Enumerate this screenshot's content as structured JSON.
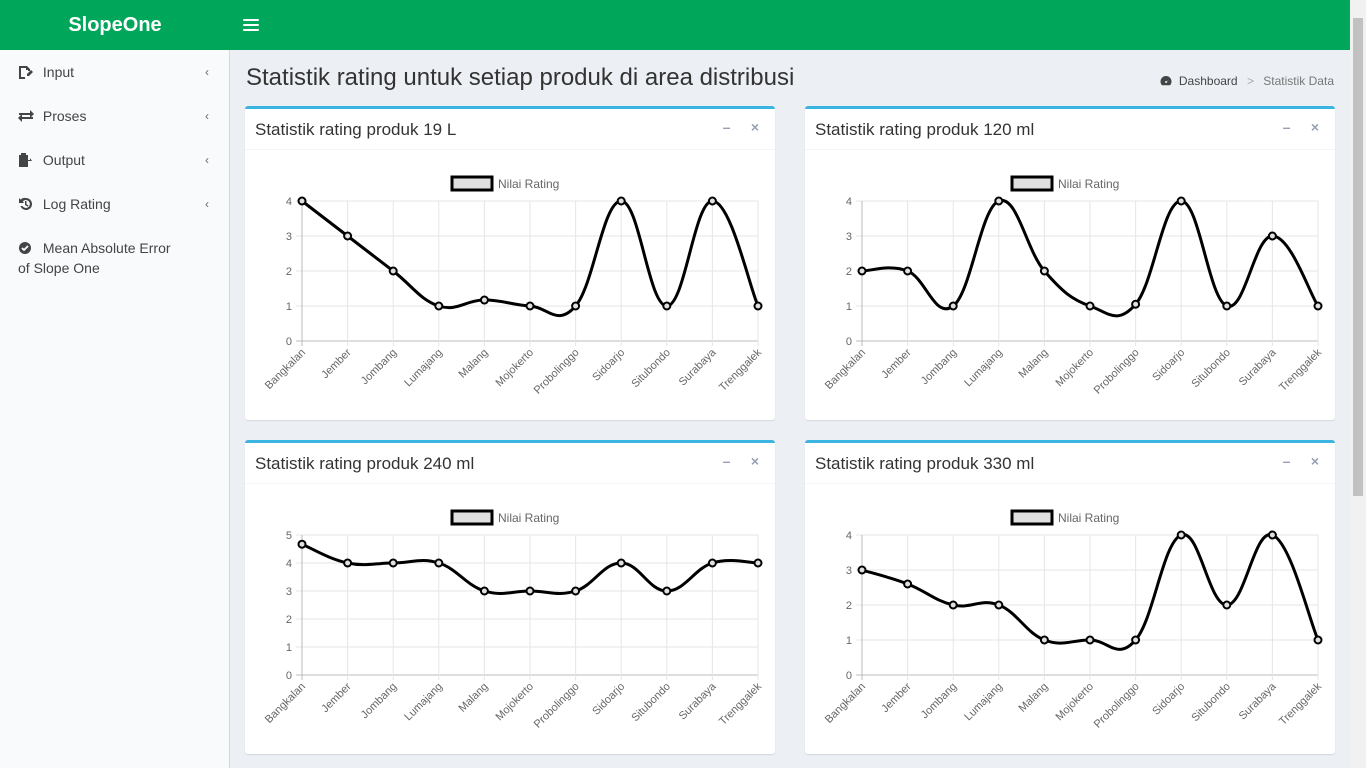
{
  "app": {
    "title": "SlopeOne"
  },
  "sidebar": {
    "items": [
      {
        "label": "Input",
        "icon": "input-icon"
      },
      {
        "label": "Proses",
        "icon": "exchange-icon"
      },
      {
        "label": "Output",
        "icon": "output-icon"
      },
      {
        "label": "Log Rating",
        "icon": "history-icon"
      },
      {
        "label_line1": "Mean Absolute Error",
        "label_line2": "of Slope One",
        "icon": "check-circle-icon"
      }
    ]
  },
  "page": {
    "title": "Statistik rating untuk setiap produk di area distribusi",
    "breadcrumb": {
      "home": "Dashboard",
      "current": "Statistik Data"
    }
  },
  "colors": {
    "header": "#00a65a",
    "box_border": "#3cb4e0",
    "line": "#000000"
  },
  "chart_data": [
    {
      "type": "line",
      "title": "Statistik rating produk 19 L",
      "legend": "Nilai Rating",
      "categories": [
        "Bangkalan",
        "Jember",
        "Jombang",
        "Lumajang",
        "Malang",
        "Mojokerto",
        "Probolinggo",
        "Sidoarjo",
        "Situbondo",
        "Surabaya",
        "Trenggalek"
      ],
      "values": [
        4,
        3,
        2,
        1,
        1.17,
        1,
        1,
        4,
        1,
        4,
        1
      ],
      "ylim": [
        0,
        4
      ],
      "yticks": [
        0,
        1,
        2,
        3,
        4
      ]
    },
    {
      "type": "line",
      "title": "Statistik rating produk 120 ml",
      "legend": "Nilai Rating",
      "categories": [
        "Bangkalan",
        "Jember",
        "Jombang",
        "Lumajang",
        "Malang",
        "Mojokerto",
        "Probolinggo",
        "Sidoarjo",
        "Situbondo",
        "Surabaya",
        "Trenggalek"
      ],
      "values": [
        2,
        2,
        1,
        4,
        2,
        1,
        1.05,
        4,
        1,
        3,
        1
      ],
      "ylim": [
        0,
        4
      ],
      "yticks": [
        0,
        1,
        2,
        3,
        4
      ]
    },
    {
      "type": "line",
      "title": "Statistik rating produk 240 ml",
      "legend": "Nilai Rating",
      "categories": [
        "Bangkalan",
        "Jember",
        "Jombang",
        "Lumajang",
        "Malang",
        "Mojokerto",
        "Probolinggo",
        "Sidoarjo",
        "Situbondo",
        "Surabaya",
        "Trenggalek"
      ],
      "values": [
        4.67,
        4,
        4,
        4,
        3,
        3,
        3,
        4,
        3,
        4,
        4
      ],
      "ylim": [
        0,
        5
      ],
      "yticks": [
        0,
        1,
        2,
        3,
        4,
        5
      ]
    },
    {
      "type": "line",
      "title": "Statistik rating produk 330 ml",
      "legend": "Nilai Rating",
      "categories": [
        "Bangkalan",
        "Jember",
        "Jombang",
        "Lumajang",
        "Malang",
        "Mojokerto",
        "Probolinggo",
        "Sidoarjo",
        "Situbondo",
        "Surabaya",
        "Trenggalek"
      ],
      "values": [
        3,
        2.6,
        2,
        2,
        1,
        1,
        1,
        4,
        2,
        4,
        1
      ],
      "ylim": [
        0,
        4
      ],
      "yticks": [
        0,
        1,
        2,
        3,
        4
      ]
    }
  ]
}
